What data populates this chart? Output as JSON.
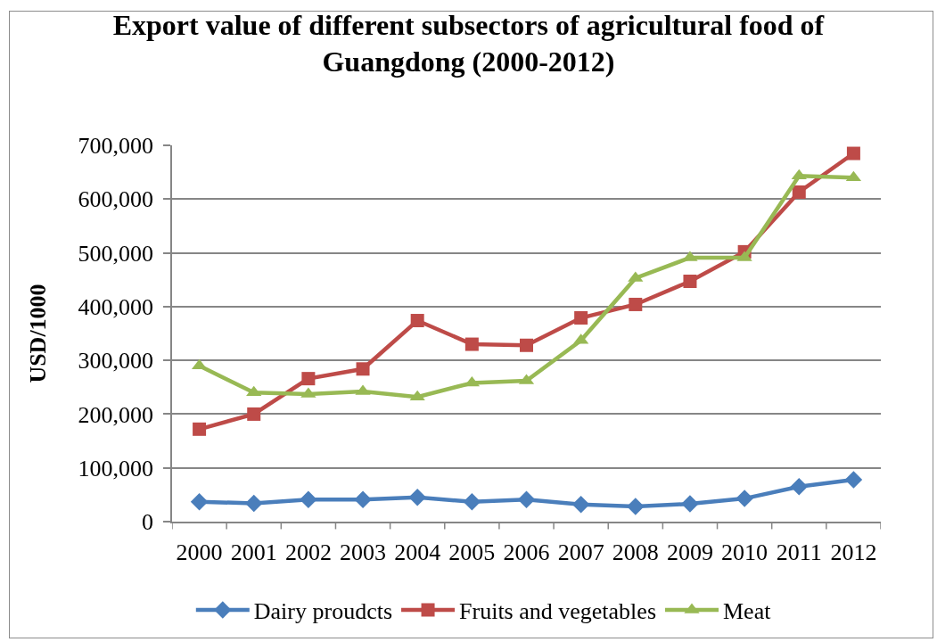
{
  "chart_data": {
    "type": "line",
    "title": "Export value of different subsectors of agricultural food of Guangdong (2000-2012)",
    "ylabel": "USD/1000",
    "categories": [
      "2000",
      "2001",
      "2002",
      "2003",
      "2004",
      "2005",
      "2006",
      "2007",
      "2008",
      "2009",
      "2010",
      "2011",
      "2012"
    ],
    "series": [
      {
        "name": "Dairy proudcts",
        "color": "#4a7ebb",
        "marker": "diamond",
        "values": [
          37000,
          34000,
          41000,
          41000,
          45000,
          37000,
          41000,
          32000,
          28000,
          33000,
          43000,
          65000,
          78000
        ]
      },
      {
        "name": "Fruits and vegetables",
        "color": "#be4b48",
        "marker": "square",
        "values": [
          172000,
          200000,
          266000,
          284000,
          374000,
          330000,
          328000,
          379000,
          404000,
          447000,
          502000,
          613000,
          685000
        ]
      },
      {
        "name": "Meat",
        "color": "#98b954",
        "marker": "triangle",
        "values": [
          290000,
          240000,
          237000,
          242000,
          232000,
          258000,
          262000,
          337000,
          453000,
          491000,
          491000,
          643000,
          640000
        ]
      }
    ],
    "ylim": [
      0,
      700000
    ],
    "yticks": [
      0,
      {
        "value": 100000,
        "label": "100,000"
      },
      {
        "value": 200000,
        "label": "200,000"
      },
      {
        "value": 300000,
        "label": "300,000"
      },
      {
        "value": 400000,
        "label": "400,000"
      },
      {
        "value": 500000,
        "label": "500,000"
      },
      {
        "value": 600000,
        "label": "600,000"
      },
      {
        "value": 700000,
        "label": "700,000"
      }
    ],
    "grid": "y",
    "legend": "bottom",
    "line_style": "solid"
  }
}
